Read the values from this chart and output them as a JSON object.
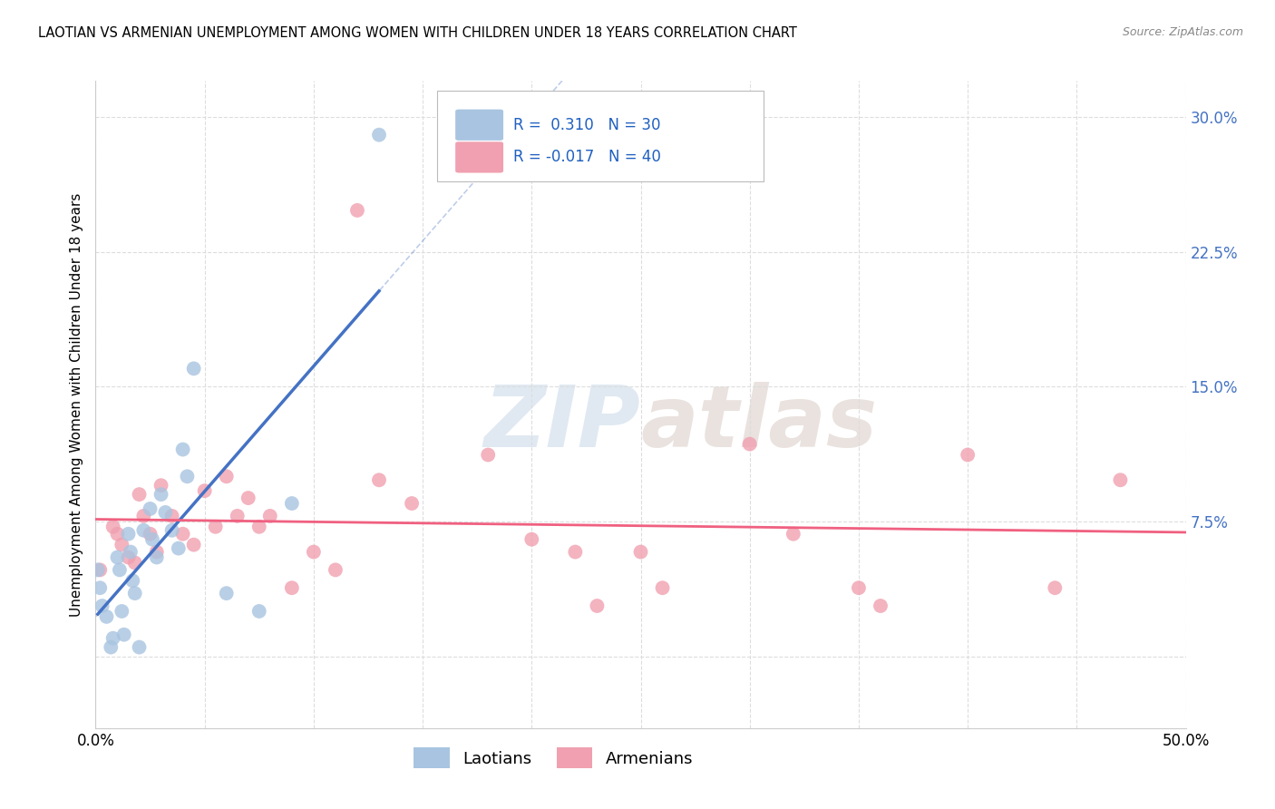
{
  "title": "LAOTIAN VS ARMENIAN UNEMPLOYMENT AMONG WOMEN WITH CHILDREN UNDER 18 YEARS CORRELATION CHART",
  "source": "Source: ZipAtlas.com",
  "ylabel": "Unemployment Among Women with Children Under 18 years",
  "xlim": [
    0.0,
    0.5
  ],
  "ylim": [
    -0.04,
    0.32
  ],
  "xtick_vals": [
    0.0,
    0.05,
    0.1,
    0.15,
    0.2,
    0.25,
    0.3,
    0.35,
    0.4,
    0.45,
    0.5
  ],
  "ytick_vals": [
    0.0,
    0.075,
    0.15,
    0.225,
    0.3
  ],
  "laotian_r": 0.31,
  "laotian_n": 30,
  "armenian_r": -0.017,
  "armenian_n": 40,
  "laotian_color": "#a8c4e0",
  "armenian_color": "#f0a0b0",
  "laotian_line_color": "#4472c4",
  "armenian_line_color": "#f06080",
  "laotian_x": [
    0.001,
    0.002,
    0.003,
    0.005,
    0.007,
    0.008,
    0.01,
    0.011,
    0.012,
    0.013,
    0.015,
    0.016,
    0.017,
    0.018,
    0.02,
    0.022,
    0.025,
    0.026,
    0.028,
    0.03,
    0.032,
    0.035,
    0.038,
    0.04,
    0.042,
    0.045,
    0.06,
    0.075,
    0.09,
    0.13
  ],
  "laotian_y": [
    0.048,
    0.038,
    0.028,
    0.022,
    0.005,
    0.01,
    0.055,
    0.048,
    0.025,
    0.012,
    0.068,
    0.058,
    0.042,
    0.035,
    0.005,
    0.07,
    0.082,
    0.065,
    0.055,
    0.09,
    0.08,
    0.07,
    0.06,
    0.115,
    0.1,
    0.16,
    0.035,
    0.025,
    0.085,
    0.29
  ],
  "armenian_x": [
    0.002,
    0.008,
    0.01,
    0.012,
    0.015,
    0.018,
    0.02,
    0.022,
    0.025,
    0.028,
    0.03,
    0.035,
    0.04,
    0.045,
    0.05,
    0.055,
    0.06,
    0.065,
    0.07,
    0.075,
    0.08,
    0.09,
    0.1,
    0.11,
    0.12,
    0.13,
    0.145,
    0.18,
    0.2,
    0.22,
    0.23,
    0.25,
    0.26,
    0.3,
    0.32,
    0.35,
    0.36,
    0.4,
    0.44,
    0.47
  ],
  "armenian_y": [
    0.048,
    0.072,
    0.068,
    0.062,
    0.055,
    0.052,
    0.09,
    0.078,
    0.068,
    0.058,
    0.095,
    0.078,
    0.068,
    0.062,
    0.092,
    0.072,
    0.1,
    0.078,
    0.088,
    0.072,
    0.078,
    0.038,
    0.058,
    0.048,
    0.248,
    0.098,
    0.085,
    0.112,
    0.065,
    0.058,
    0.028,
    0.058,
    0.038,
    0.118,
    0.068,
    0.038,
    0.028,
    0.112,
    0.038,
    0.098
  ],
  "watermark_line1": "ZIP",
  "watermark_line2": "atlas",
  "background_color": "#ffffff",
  "grid_color": "#dddddd",
  "right_ytick_color": "#4472c4",
  "title_fontsize": 10.5,
  "source_fontsize": 9,
  "watermark_color": "#c8d8e8"
}
